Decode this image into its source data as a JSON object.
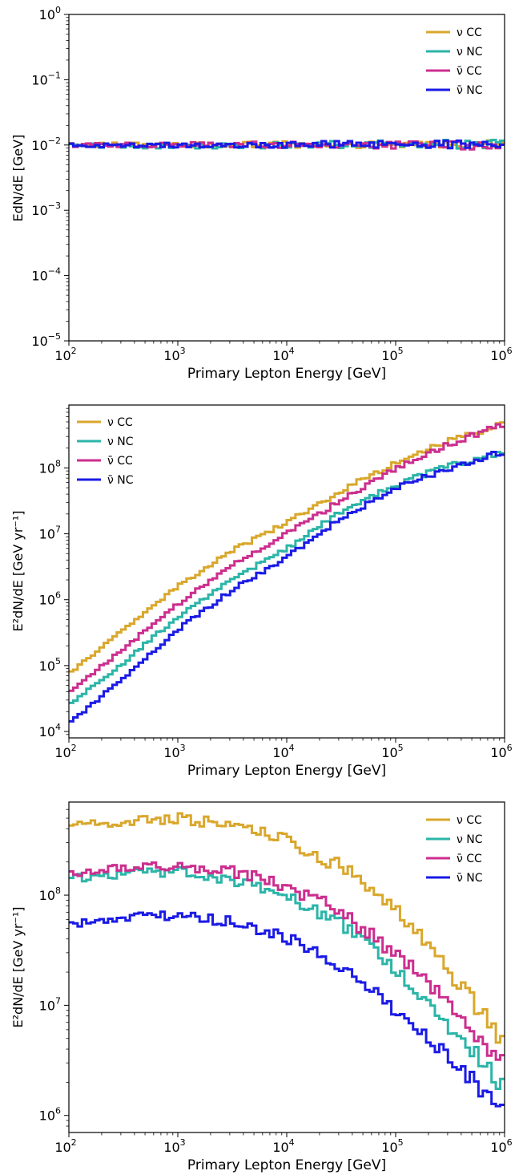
{
  "colors": {
    "nu_cc": "#d9a72b",
    "nu_nc": "#2bb5a8",
    "nubar_cc": "#cc2e8f",
    "nubar_nc": "#1a1ae6"
  },
  "legend_labels": [
    "ν CC",
    "ν NC",
    "ν̄ CC",
    "ν̄ NC"
  ],
  "chart_data": [
    {
      "type": "line",
      "step": true,
      "xlabel": "Primary Lepton Energy [GeV]",
      "ylabel": "EdN/dE [GeV]",
      "xscale": "log",
      "yscale": "log",
      "xlim": [
        100,
        1000000
      ],
      "ylim": [
        1e-05,
        1
      ],
      "xticks": [
        {
          "base": "10",
          "exp": "2"
        },
        {
          "base": "10",
          "exp": "3"
        },
        {
          "base": "10",
          "exp": "4"
        },
        {
          "base": "10",
          "exp": "5"
        },
        {
          "base": "10",
          "exp": "6"
        }
      ],
      "yticks": [
        {
          "base": "10",
          "exp": "−5"
        },
        {
          "base": "10",
          "exp": "−4"
        },
        {
          "base": "10",
          "exp": "−3"
        },
        {
          "base": "10",
          "exp": "−2"
        },
        {
          "base": "10",
          "exp": "−1"
        },
        {
          "base": "10",
          "exp": "0"
        }
      ],
      "legend": "top-right",
      "grid": false,
      "series": [
        {
          "name": "ν CC",
          "color": "#d9a72b",
          "x": [
            100,
            1000,
            10000,
            100000,
            1000000
          ],
          "y": [
            0.0101,
            0.01,
            0.0101,
            0.01,
            0.0101
          ]
        },
        {
          "name": "ν NC",
          "color": "#2bb5a8",
          "x": [
            100,
            1000,
            10000,
            100000,
            1000000
          ],
          "y": [
            0.0098,
            0.0096,
            0.01,
            0.0104,
            0.0102
          ]
        },
        {
          "name": "ν̄ CC",
          "color": "#cc2e8f",
          "x": [
            100,
            1000,
            10000,
            100000,
            1000000
          ],
          "y": [
            0.01,
            0.0101,
            0.0101,
            0.01,
            0.0099
          ]
        },
        {
          "name": "ν̄ NC",
          "color": "#1a1ae6",
          "x": [
            100,
            1000,
            10000,
            100000,
            1000000
          ],
          "y": [
            0.0099,
            0.01,
            0.0102,
            0.0101,
            0.0106
          ]
        }
      ]
    },
    {
      "type": "line",
      "step": true,
      "xlabel": "Primary Lepton Energy [GeV]",
      "ylabel": "E²dN/dE [GeV yr⁻¹]",
      "xscale": "log",
      "yscale": "log",
      "xlim": [
        100,
        1000000
      ],
      "ylim": [
        8000,
        900000000
      ],
      "xticks": [
        {
          "base": "10",
          "exp": "2"
        },
        {
          "base": "10",
          "exp": "3"
        },
        {
          "base": "10",
          "exp": "4"
        },
        {
          "base": "10",
          "exp": "5"
        },
        {
          "base": "10",
          "exp": "6"
        }
      ],
      "yticks": [
        {
          "base": "10",
          "exp": "4"
        },
        {
          "base": "10",
          "exp": "5"
        },
        {
          "base": "10",
          "exp": "6"
        },
        {
          "base": "10",
          "exp": "7"
        },
        {
          "base": "10",
          "exp": "8"
        }
      ],
      "legend": "top-left",
      "grid": false,
      "series": [
        {
          "name": "ν CC",
          "color": "#d9a72b",
          "x": [
            100,
            316,
            1000,
            3162,
            10000,
            31623,
            100000,
            316228,
            1000000
          ],
          "y": [
            75000,
            350000,
            1600000,
            5500000,
            15000000,
            45000000,
            120000000,
            260000000,
            480000000
          ]
        },
        {
          "name": "ν NC",
          "color": "#2bb5a8",
          "x": [
            100,
            316,
            1000,
            3162,
            10000,
            31623,
            100000,
            316228,
            1000000
          ],
          "y": [
            25000,
            110000,
            550000,
            2000000,
            6000000,
            22000000,
            55000000,
            110000000,
            180000000
          ]
        },
        {
          "name": "ν̄ CC",
          "color": "#cc2e8f",
          "x": [
            100,
            316,
            1000,
            3162,
            10000,
            31623,
            100000,
            316228,
            1000000
          ],
          "y": [
            38000,
            180000,
            850000,
            3300000,
            10000000,
            32000000,
            95000000,
            230000000,
            460000000
          ]
        },
        {
          "name": "ν̄ NC",
          "color": "#1a1ae6",
          "x": [
            100,
            316,
            1000,
            3162,
            10000,
            31623,
            100000,
            316228,
            1000000
          ],
          "y": [
            13000,
            65000,
            350000,
            1400000,
            4500000,
            17000000,
            50000000,
            100000000,
            180000000
          ]
        }
      ]
    },
    {
      "type": "line",
      "step": true,
      "xlabel": "Primary Lepton Energy [GeV]",
      "ylabel": "E²dN/dE [GeV yr⁻¹]",
      "xscale": "log",
      "yscale": "log",
      "xlim": [
        100,
        1000000
      ],
      "ylim": [
        700000,
        700000000
      ],
      "xticks": [
        {
          "base": "10",
          "exp": "2"
        },
        {
          "base": "10",
          "exp": "3"
        },
        {
          "base": "10",
          "exp": "4"
        },
        {
          "base": "10",
          "exp": "5"
        },
        {
          "base": "10",
          "exp": "6"
        }
      ],
      "yticks": [
        {
          "base": "10",
          "exp": "6"
        },
        {
          "base": "10",
          "exp": "7"
        },
        {
          "base": "10",
          "exp": "8"
        }
      ],
      "legend": "top-right",
      "grid": false,
      "series": [
        {
          "name": "ν CC",
          "color": "#d9a72b",
          "x": [
            100,
            316,
            1000,
            3162,
            10000,
            31623,
            100000,
            316228,
            1000000
          ],
          "y": [
            420000000,
            460000000,
            500000000,
            430000000,
            320000000,
            180000000,
            75000000,
            20000000,
            4600000
          ]
        },
        {
          "name": "ν NC",
          "color": "#2bb5a8",
          "x": [
            100,
            316,
            1000,
            3162,
            10000,
            31623,
            100000,
            316228,
            1000000
          ],
          "y": [
            140000000,
            155000000,
            165000000,
            140000000,
            100000000,
            55000000,
            22000000,
            6500000,
            1800000
          ]
        },
        {
          "name": "ν̄ CC",
          "color": "#cc2e8f",
          "x": [
            100,
            316,
            1000,
            3162,
            10000,
            31623,
            100000,
            316228,
            1000000
          ],
          "y": [
            160000000,
            175000000,
            185000000,
            165000000,
            120000000,
            70000000,
            30000000,
            10000000,
            2900000
          ]
        },
        {
          "name": "ν̄ NC",
          "color": "#1a1ae6",
          "x": [
            100,
            316,
            1000,
            3162,
            10000,
            31623,
            100000,
            316228,
            1000000
          ],
          "y": [
            55000000,
            62000000,
            65000000,
            58000000,
            42000000,
            23000000,
            9000000,
            3200000,
            1100000
          ]
        }
      ]
    }
  ]
}
